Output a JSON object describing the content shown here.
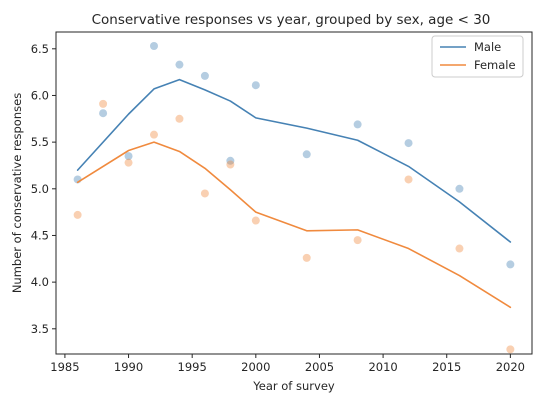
{
  "chart_data": {
    "type": "line",
    "title": "Conservative responses vs year, grouped by sex, age < 30",
    "xlabel": "Year of survey",
    "ylabel": "Number of conservative responses",
    "xlim": [
      1984.3,
      2021.7
    ],
    "ylim": [
      3.23,
      6.68
    ],
    "xticks": [
      1985,
      1990,
      1995,
      2000,
      2005,
      2010,
      2015,
      2020
    ],
    "yticks": [
      3.5,
      4.0,
      4.5,
      5.0,
      5.5,
      6.0,
      6.5
    ],
    "ytick_labels": [
      "3.5",
      "4.0",
      "4.5",
      "5.0",
      "5.5",
      "6.0",
      "6.5"
    ],
    "legend_position": "top-right",
    "grid": false,
    "series": [
      {
        "name": "Male",
        "color": "#4682b4",
        "line": {
          "x": [
            1986,
            1990,
            1992,
            1994,
            1996,
            1998,
            2000,
            2004,
            2008,
            2012,
            2016,
            2020
          ],
          "y": [
            5.2,
            5.8,
            6.07,
            6.17,
            6.06,
            5.94,
            5.76,
            5.65,
            5.52,
            5.24,
            4.86,
            4.43
          ]
        },
        "points": {
          "x": [
            1986,
            1988,
            1990,
            1992,
            1994,
            1996,
            1998,
            2000,
            2004,
            2008,
            2012,
            2016,
            2020
          ],
          "y": [
            5.1,
            5.81,
            5.35,
            6.53,
            6.33,
            6.21,
            5.3,
            6.11,
            5.37,
            5.69,
            5.49,
            5.0,
            4.19
          ]
        }
      },
      {
        "name": "Female",
        "color": "#f08a3e",
        "line": {
          "x": [
            1986,
            1990,
            1992,
            1994,
            1996,
            1998,
            2000,
            2004,
            2008,
            2012,
            2016,
            2020
          ],
          "y": [
            5.07,
            5.41,
            5.5,
            5.4,
            5.22,
            4.99,
            4.75,
            4.55,
            4.56,
            4.36,
            4.07,
            3.73
          ]
        },
        "points": {
          "x": [
            1986,
            1988,
            1990,
            1992,
            1994,
            1996,
            1998,
            2000,
            2004,
            2008,
            2012,
            2016,
            2020
          ],
          "y": [
            4.72,
            5.91,
            5.28,
            5.58,
            5.75,
            4.95,
            5.26,
            4.66,
            4.26,
            4.45,
            5.1,
            4.36,
            3.28
          ]
        }
      }
    ]
  }
}
